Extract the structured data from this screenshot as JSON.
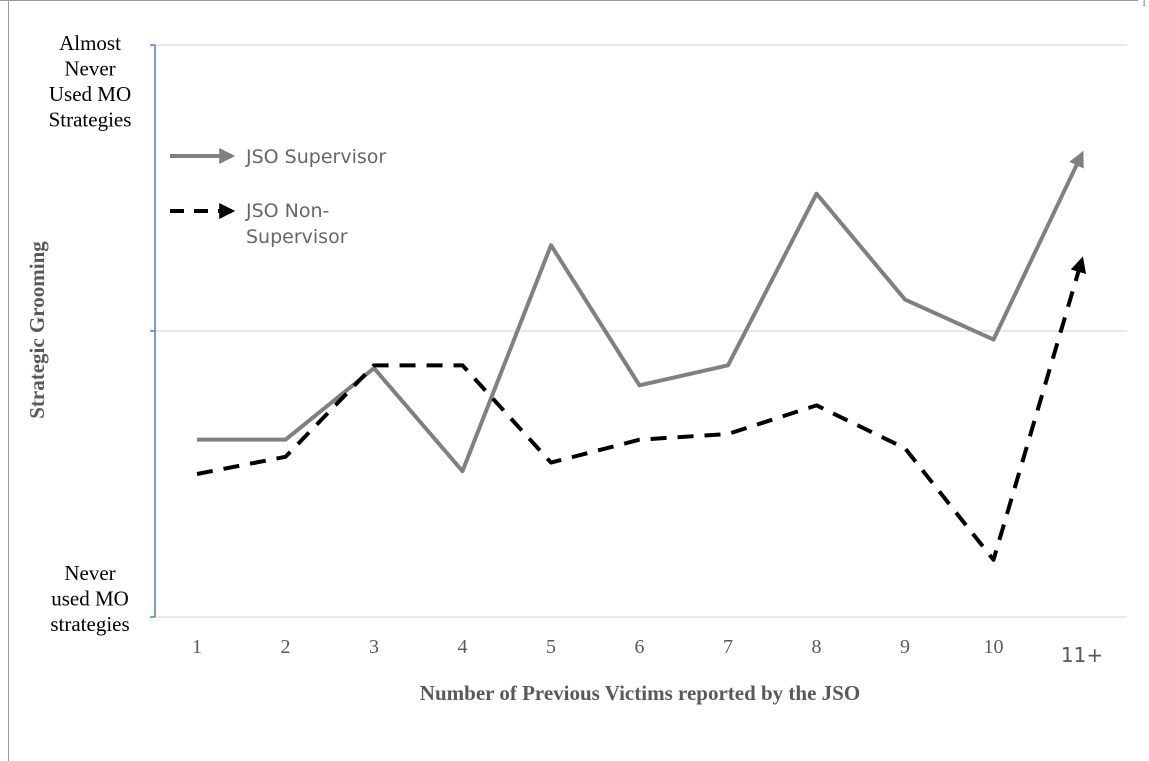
{
  "page_fragment": "1",
  "chart_data": {
    "type": "line",
    "title": "",
    "xlabel": "Number of Previous Victims reported by the JSO",
    "ylabel": "Strategic Grooming",
    "categories": [
      "1",
      "2",
      "3",
      "4",
      "5",
      "6",
      "7",
      "8",
      "9",
      "10",
      "11+"
    ],
    "ylim": [
      0,
      2
    ],
    "y_tick_labels": [
      {
        "value": 2,
        "lines": [
          "Almost",
          "Never",
          "Used MO",
          "Strategies"
        ]
      },
      {
        "value": 0,
        "lines": [
          "Never",
          "used MO",
          "strategies"
        ]
      }
    ],
    "gridlines_at": [
      1,
      2
    ],
    "grid": true,
    "legend_position": "top-left",
    "series": [
      {
        "name": "JSO Supervisor",
        "style": "solid",
        "color": "#808080",
        "end_marker": "arrow",
        "values": [
          0.62,
          0.62,
          0.87,
          0.51,
          1.3,
          0.81,
          0.88,
          1.48,
          1.11,
          0.97,
          1.62
        ]
      },
      {
        "name": "JSO Non-Supervisor",
        "style": "dashed",
        "color": "#000000",
        "end_marker": "arrow",
        "values": [
          0.5,
          0.56,
          0.88,
          0.88,
          0.54,
          0.62,
          0.64,
          0.74,
          0.59,
          0.2,
          1.25
        ]
      }
    ]
  }
}
